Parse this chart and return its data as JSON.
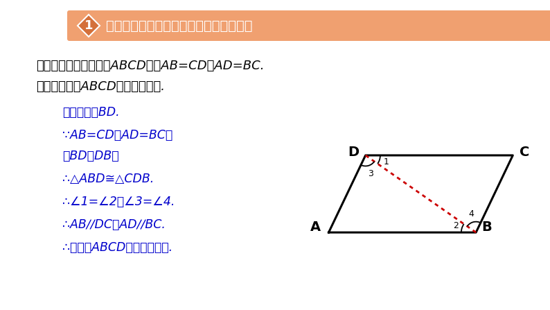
{
  "bg_color": "#ffffff",
  "title_banner_color": "#f0a070",
  "title_badge_color": "#d4703a",
  "title_badge_text": "1",
  "title_text": "两组对边分别相等的四边形是平行四边形",
  "given_line1_cn": "已知：如图，在四边形",
  "given_line1_mid": "ABCD",
  "given_line1_cn2": "中，",
  "given_line1_formula": "AB=CD，AD=BC.",
  "given_line2_cn": "求证：四边形",
  "given_line2_mid": "ABCD",
  "given_line2_cn2": "是平行四边形.",
  "proof_color": "#0000cc",
  "given_color": "#000000",
  "para_A": [
    0.0,
    0.0
  ],
  "para_B": [
    2.2,
    0.0
  ],
  "para_C": [
    2.75,
    1.15
  ],
  "para_D": [
    0.55,
    1.15
  ]
}
